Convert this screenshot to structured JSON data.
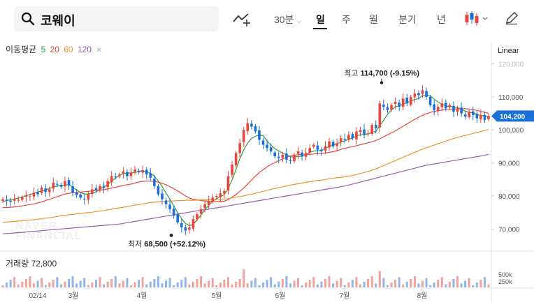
{
  "search": {
    "query": "코웨이"
  },
  "toolbar": {
    "interval": "30분",
    "periods": [
      "일",
      "주",
      "월",
      "분기",
      "년"
    ],
    "active_period": "일"
  },
  "moving_average": {
    "label": "이동평균",
    "periods": [
      {
        "value": "5",
        "color": "#2e9e3f"
      },
      {
        "value": "20",
        "color": "#e8453c"
      },
      {
        "value": "60",
        "color": "#f0932b"
      },
      {
        "value": "120",
        "color": "#9b59b6"
      }
    ]
  },
  "scale_mode": "Linear",
  "watermark": [
    "NAVER",
    "FINANCIAL"
  ],
  "volume_label": "거래량 72,800",
  "chart_data": {
    "type": "candlestick",
    "x_tick_labels": [
      "02/14",
      "3월",
      "4월",
      "5월",
      "6월",
      "7월",
      "8월"
    ],
    "y_tick_labels": [
      "120,000",
      "110,000",
      "100,000",
      "90,000",
      "80,000",
      "70,000"
    ],
    "ylim": [
      65000,
      122000
    ],
    "current_price": "104,200",
    "high_annotation": {
      "label": "최고",
      "value": "114,700",
      "change": "(-9.15%)"
    },
    "low_annotation": {
      "label": "최저",
      "value": "68,500",
      "change": "(+52.12%)"
    },
    "volume_tick_labels": [
      "500k",
      "250k"
    ],
    "close_series": [
      79000,
      78500,
      78200,
      79000,
      78800,
      79500,
      80200,
      79900,
      81000,
      80500,
      82500,
      81200,
      82000,
      84000,
      83500,
      82800,
      84500,
      83200,
      81000,
      80200,
      79500,
      79000,
      80500,
      82000,
      81800,
      83000,
      82500,
      84500,
      86000,
      85800,
      86500,
      87500,
      86000,
      87000,
      88000,
      87200,
      87800,
      86500,
      85500,
      83000,
      80500,
      79000,
      77500,
      76000,
      74000,
      72000,
      70500,
      69500,
      70500,
      73000,
      74500,
      76000,
      77500,
      78500,
      79500,
      80000,
      80800,
      81500,
      86000,
      89500,
      93000,
      96000,
      100000,
      102000,
      101000,
      99500,
      97000,
      95500,
      94500,
      93500,
      92000,
      91500,
      92500,
      91000,
      90500,
      92500,
      93500,
      92000,
      93000,
      94500,
      95500,
      94000,
      93500,
      95000,
      96500,
      95000,
      96000,
      97500,
      97000,
      98500,
      97500,
      99500,
      100000,
      98500,
      99000,
      101500,
      100500,
      108000,
      107000,
      106000,
      107500,
      108500,
      107000,
      109500,
      108000,
      110000,
      111000,
      110500,
      112000,
      110000,
      107500,
      106000,
      107000,
      108000,
      106500,
      107500,
      105500,
      106500,
      105000,
      104000,
      105500,
      104500,
      103500,
      104500,
      103000,
      104200
    ],
    "ma5": [
      78300,
      78600,
      78900,
      79100,
      79300,
      79700,
      80100,
      80400,
      80800,
      81200,
      81500,
      81800,
      82300,
      82700,
      83000,
      83200,
      83300,
      83400,
      82600,
      81800,
      81100,
      80600,
      80600,
      80800,
      81200,
      82100,
      82800,
      83400,
      84600,
      85400,
      86200,
      86800,
      86900,
      87000,
      87100,
      87400,
      87700,
      87200,
      86900,
      86000,
      84600,
      82800,
      80900,
      79000,
      77000,
      74900,
      73100,
      71700,
      71000,
      71400,
      72800,
      74200,
      75800,
      77200,
      78400,
      79200,
      79800,
      80400,
      82300,
      84800,
      88000,
      91300,
      94000,
      96000,
      97400,
      98100,
      98400,
      98300,
      96600,
      95400,
      94300,
      93600,
      93000,
      92500,
      91900,
      91700,
      92000,
      92000,
      92400,
      93200,
      93600,
      93700,
      93800,
      94500,
      95000,
      95400,
      95800,
      96300,
      96700,
      97200,
      97500,
      98200,
      98500,
      98600,
      98700,
      99400,
      99500,
      101300,
      102900,
      104700,
      106000,
      107000,
      107300,
      107800,
      108200,
      108700,
      109200,
      109500,
      110400,
      110500,
      110300,
      109300,
      108400,
      107800,
      107200,
      107100,
      107000,
      106800,
      106200,
      105700,
      105300,
      105200,
      104700,
      104300,
      104200,
      104100
    ],
    "ma20": [
      76500,
      76500,
      76600,
      76700,
      76800,
      77000,
      77200,
      77400,
      77600,
      77900,
      78200,
      78600,
      79000,
      79400,
      79800,
      80200,
      80600,
      80800,
      81000,
      81100,
      81200,
      81300,
      81400,
      81500,
      81700,
      81800,
      81900,
      82100,
      82400,
      82600,
      82900,
      83200,
      83400,
      83600,
      83900,
      84200,
      84400,
      84500,
      84500,
      84400,
      84200,
      83800,
      83400,
      82800,
      82200,
      81500,
      80800,
      80000,
      79400,
      79000,
      78800,
      78600,
      78500,
      78400,
      78300,
      78300,
      78300,
      78400,
      78900,
      79600,
      80400,
      81400,
      82400,
      83600,
      84800,
      86000,
      87100,
      88000,
      88800,
      89500,
      90100,
      90700,
      91200,
      91700,
      92100,
      92300,
      92500,
      92600,
      92600,
      92600,
      92700,
      92800,
      92900,
      93000,
      93200,
      93400,
      93700,
      94100,
      94400,
      94700,
      94900,
      95200,
      95500,
      95800,
      96100,
      96400,
      96800,
      97300,
      97900,
      98500,
      99100,
      99700,
      100400,
      101100,
      101800,
      102500,
      103200,
      103800,
      104400,
      104900,
      105300,
      105600,
      105800,
      106000,
      106100,
      106200,
      106300,
      106400,
      106400,
      106400,
      106300,
      106100,
      105900,
      105600,
      105300,
      105000
    ],
    "ma60": [
      72000,
      72100,
      72200,
      72300,
      72400,
      72500,
      72600,
      72700,
      72800,
      73000,
      73100,
      73300,
      73400,
      73600,
      73800,
      74000,
      74100,
      74300,
      74400,
      74600,
      74700,
      74800,
      75000,
      75100,
      75300,
      75400,
      75600,
      75800,
      76000,
      76200,
      76400,
      76600,
      76800,
      77000,
      77200,
      77400,
      77600,
      77800,
      78000,
      78100,
      78200,
      78300,
      78400,
      78500,
      78500,
      78600,
      78600,
      78700,
      78700,
      78700,
      78700,
      78800,
      78800,
      78800,
      78900,
      78900,
      79000,
      79100,
      79200,
      79400,
      79600,
      79800,
      80000,
      80300,
      80500,
      80800,
      81100,
      81400,
      81700,
      82000,
      82300,
      82500,
      82800,
      83000,
      83300,
      83500,
      83700,
      83900,
      84100,
      84300,
      84500,
      84700,
      84800,
      85000,
      85200,
      85300,
      85500,
      85600,
      85800,
      86000,
      86200,
      86500,
      86800,
      87100,
      87400,
      87800,
      88200,
      88700,
      89200,
      89700,
      90200,
      90700,
      91200,
      91700,
      92200,
      92700,
      93200,
      93700,
      94200,
      94600,
      95000,
      95400,
      95800,
      96200,
      96600,
      97000,
      97400,
      97700,
      98000,
      98300,
      98600,
      98900,
      99200,
      99500,
      99800,
      100100
    ],
    "ma120": [
      68500,
      68600,
      68700,
      68800,
      68900,
      69000,
      69100,
      69200,
      69300,
      69400,
      69500,
      69600,
      69700,
      69800,
      69900,
      70000,
      70100,
      70200,
      70300,
      70400,
      70500,
      70600,
      70700,
      70800,
      70900,
      71000,
      71100,
      71200,
      71300,
      71400,
      71500,
      71700,
      71900,
      72100,
      72300,
      72500,
      72700,
      72900,
      73100,
      73300,
      73500,
      73700,
      73900,
      74100,
      74300,
      74500,
      74700,
      74900,
      75100,
      75300,
      75500,
      75700,
      75800,
      76000,
      76200,
      76400,
      76600,
      76800,
      77000,
      77200,
      77400,
      77600,
      77800,
      78000,
      78200,
      78400,
      78600,
      78800,
      79000,
      79200,
      79400,
      79600,
      79800,
      80000,
      80200,
      80400,
      80600,
      80800,
      81000,
      81200,
      81400,
      81600,
      81800,
      82000,
      82200,
      82400,
      82600,
      82800,
      83000,
      83300,
      83600,
      83900,
      84200,
      84500,
      84800,
      85100,
      85400,
      85700,
      86000,
      86300,
      86600,
      86900,
      87200,
      87500,
      87800,
      88100,
      88400,
      88700,
      89000,
      89300,
      89500,
      89700,
      89900,
      90100,
      90300,
      90500,
      90700,
      90900,
      91100,
      91300,
      91500,
      91700,
      91900,
      92100,
      92300,
      92600
    ]
  }
}
